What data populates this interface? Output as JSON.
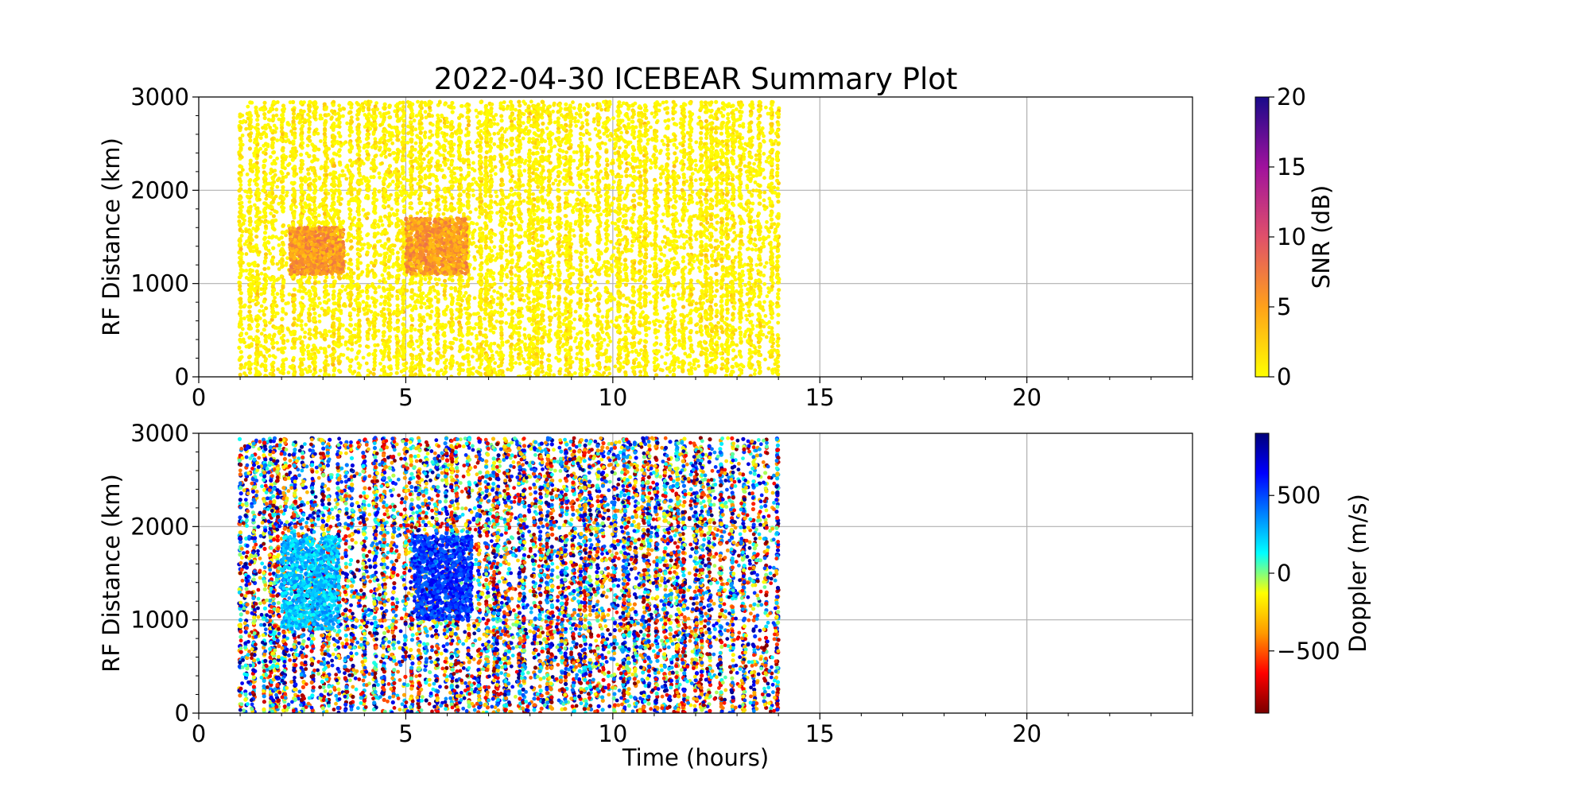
{
  "chart_data": [
    {
      "type": "scatter",
      "title": "2022-04-30 ICEBEAR Summary Plot",
      "xlabel": "",
      "ylabel": "RF Distance (km)",
      "xlim": [
        0,
        24
      ],
      "ylim": [
        0,
        3000
      ],
      "xticks": [
        0,
        5,
        10,
        15,
        20
      ],
      "yticks": [
        0,
        1000,
        2000,
        3000
      ],
      "grid": true,
      "data_extent": {
        "x": [
          1.0,
          14.0
        ],
        "y": [
          0,
          2950
        ]
      },
      "color_variable": "SNR (dB)",
      "colorbar": {
        "label": "SNR (dB)",
        "range": [
          0,
          20
        ],
        "ticks": [
          0,
          5,
          10,
          15,
          20
        ],
        "colormap": [
          "#ffff00",
          "#ffa11a",
          "#e0506a",
          "#a0129d",
          "#1a0a8a"
        ]
      },
      "features": [
        {
          "x": [
            1.0,
            14.0
          ],
          "y": [
            0,
            2950
          ],
          "snr": [
            0,
            2
          ]
        },
        {
          "x": [
            2.2,
            3.5
          ],
          "y": [
            1100,
            1600
          ],
          "snr": [
            3,
            8
          ]
        },
        {
          "x": [
            5.0,
            6.5
          ],
          "y": [
            1100,
            1700
          ],
          "snr": [
            3,
            8
          ]
        }
      ]
    },
    {
      "type": "scatter",
      "title": "",
      "xlabel": "Time (hours)",
      "ylabel": "RF Distance (km)",
      "xlim": [
        0,
        24
      ],
      "ylim": [
        0,
        3000
      ],
      "xticks": [
        0,
        5,
        10,
        15,
        20
      ],
      "yticks": [
        0,
        1000,
        2000,
        3000
      ],
      "grid": true,
      "data_extent": {
        "x": [
          1.0,
          14.0
        ],
        "y": [
          0,
          2950
        ]
      },
      "color_variable": "Doppler (m/s)",
      "colorbar": {
        "label": "Doppler (m/s)",
        "range": [
          -900,
          900
        ],
        "ticks": [
          -500,
          0,
          500
        ],
        "tick_labels": [
          "−500",
          "0",
          "500"
        ],
        "colormap": [
          "#7a0000",
          "#ff0000",
          "#ff9900",
          "#ffff00",
          "#00ffff",
          "#0080ff",
          "#0000ff",
          "#00007a"
        ]
      },
      "features": [
        {
          "x": [
            1.0,
            14.0
          ],
          "y": [
            0,
            2950
          ],
          "doppler": [
            -900,
            900
          ]
        },
        {
          "x": [
            2.0,
            3.4
          ],
          "y": [
            900,
            1900
          ],
          "doppler": [
            100,
            400
          ]
        },
        {
          "x": [
            5.2,
            6.6
          ],
          "y": [
            1000,
            1900
          ],
          "doppler": [
            400,
            700
          ]
        }
      ]
    }
  ]
}
